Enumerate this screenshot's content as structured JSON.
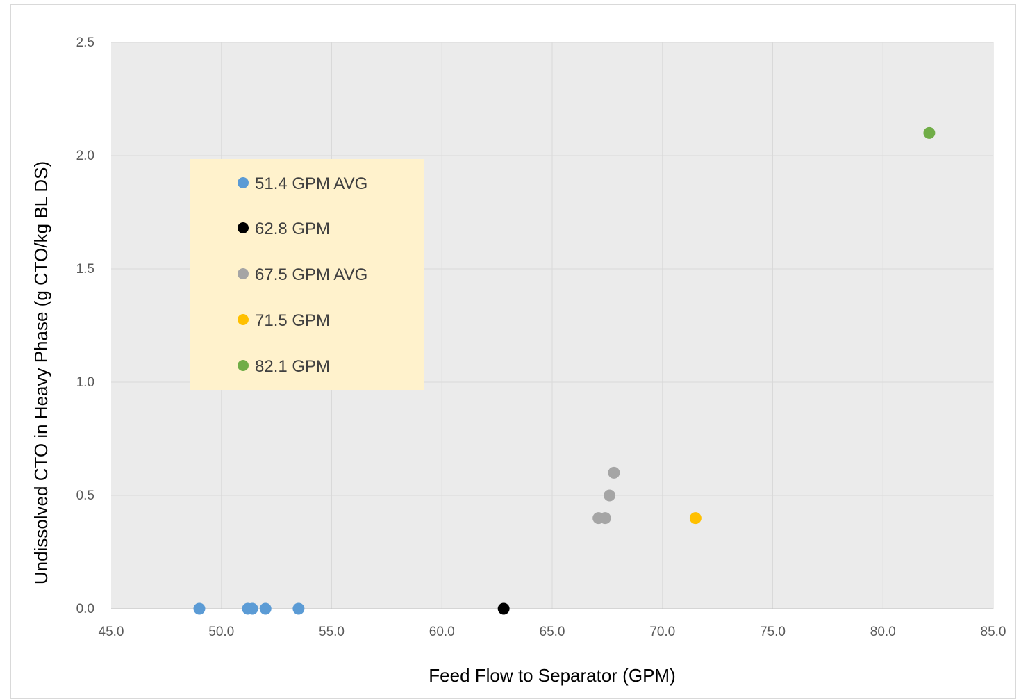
{
  "chart_data": {
    "type": "scatter",
    "title": "",
    "xlabel": "Feed Flow to Separator (GPM)",
    "ylabel": "Undissolved CTO in Heavy Phase (g CTO/kg BL DS)",
    "xlim": [
      45.0,
      85.0
    ],
    "ylim": [
      0.0,
      2.5
    ],
    "x_ticks": [
      "45.0",
      "50.0",
      "55.0",
      "60.0",
      "65.0",
      "70.0",
      "75.0",
      "80.0",
      "85.0"
    ],
    "y_ticks": [
      "0.0",
      "0.5",
      "1.0",
      "1.5",
      "2.0",
      "2.5"
    ],
    "grid": true,
    "plot_background": "#ebebeb",
    "gridline_color": "#d9d9d9",
    "legend_position": "upper-left inside plot",
    "legend_background": "#fff2cc",
    "series": [
      {
        "name": "51.4 GPM AVG",
        "color": "#5b9bd5",
        "points": [
          [
            49.0,
            0.0
          ],
          [
            51.2,
            0.0
          ],
          [
            51.4,
            0.0
          ],
          [
            52.0,
            0.0
          ],
          [
            53.5,
            0.0
          ]
        ]
      },
      {
        "name": "62.8 GPM",
        "color": "#000000",
        "points": [
          [
            62.8,
            0.0
          ]
        ]
      },
      {
        "name": "67.5 GPM AVG",
        "color": "#a5a5a5",
        "points": [
          [
            67.1,
            0.4
          ],
          [
            67.4,
            0.4
          ],
          [
            67.6,
            0.5
          ],
          [
            67.8,
            0.6
          ]
        ]
      },
      {
        "name": "71.5 GPM",
        "color": "#ffc000",
        "points": [
          [
            71.5,
            0.4
          ]
        ]
      },
      {
        "name": "82.1 GPM",
        "color": "#70ad47",
        "points": [
          [
            82.1,
            2.1
          ]
        ]
      }
    ]
  }
}
